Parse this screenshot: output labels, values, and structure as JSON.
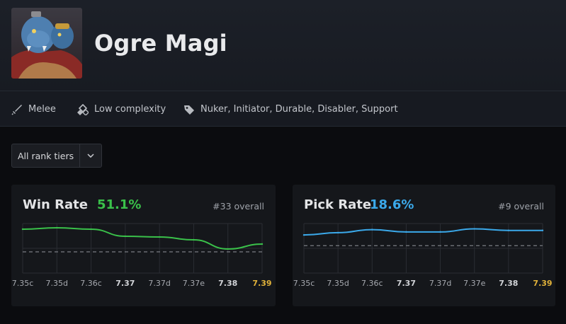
{
  "hero": {
    "name": "Ogre Magi",
    "portrait": "ogre-magi-portrait"
  },
  "attributes": [
    {
      "icon": "sword-icon",
      "label": "Melee"
    },
    {
      "icon": "complexity-icon",
      "label": "Low complexity"
    },
    {
      "icon": "tag-icon",
      "label": "Nuker, Initiator, Durable, Disabler, Support"
    }
  ],
  "filter": {
    "label": "All rank tiers",
    "icon": "chevron-down-icon"
  },
  "colors": {
    "win": "#3ac14a",
    "pick": "#3ba9ea",
    "current_patch": "#e2b33a",
    "grid": "#2a2d33",
    "baseline": "#7a7d83"
  },
  "win_card": {
    "title": "Win Rate",
    "value": "51.1%",
    "rank": "#33 overall"
  },
  "pick_card": {
    "title": "Pick Rate",
    "value": "18.6%",
    "rank": "#9 overall"
  },
  "chart_data": [
    {
      "type": "line",
      "title": "Win Rate",
      "x": [
        "7.35c",
        "7.35d",
        "7.36c",
        "7.37",
        "7.37d",
        "7.37e",
        "7.38",
        "7.39"
      ],
      "x_bold": [
        "7.37",
        "7.38",
        "7.39"
      ],
      "x_highlight": "7.39",
      "series": [
        {
          "values": [
            53.2,
            53.4,
            53.2,
            52.2,
            52.1,
            51.7,
            50.4,
            51.1
          ]
        }
      ],
      "reference_line": 50.0,
      "ylim": [
        47,
        54
      ],
      "grid": true
    },
    {
      "type": "line",
      "title": "Pick Rate",
      "x": [
        "7.35c",
        "7.35d",
        "7.36c",
        "7.37",
        "7.37d",
        "7.37e",
        "7.38",
        "7.39"
      ],
      "x_bold": [
        "7.37",
        "7.38",
        "7.39"
      ],
      "x_highlight": "7.39",
      "series": [
        {
          "values": [
            18.0,
            18.3,
            18.7,
            18.4,
            18.4,
            18.8,
            18.6,
            18.6
          ]
        }
      ],
      "reference_line": 16.6,
      "ylim": [
        13,
        19.5
      ],
      "grid": true
    }
  ]
}
